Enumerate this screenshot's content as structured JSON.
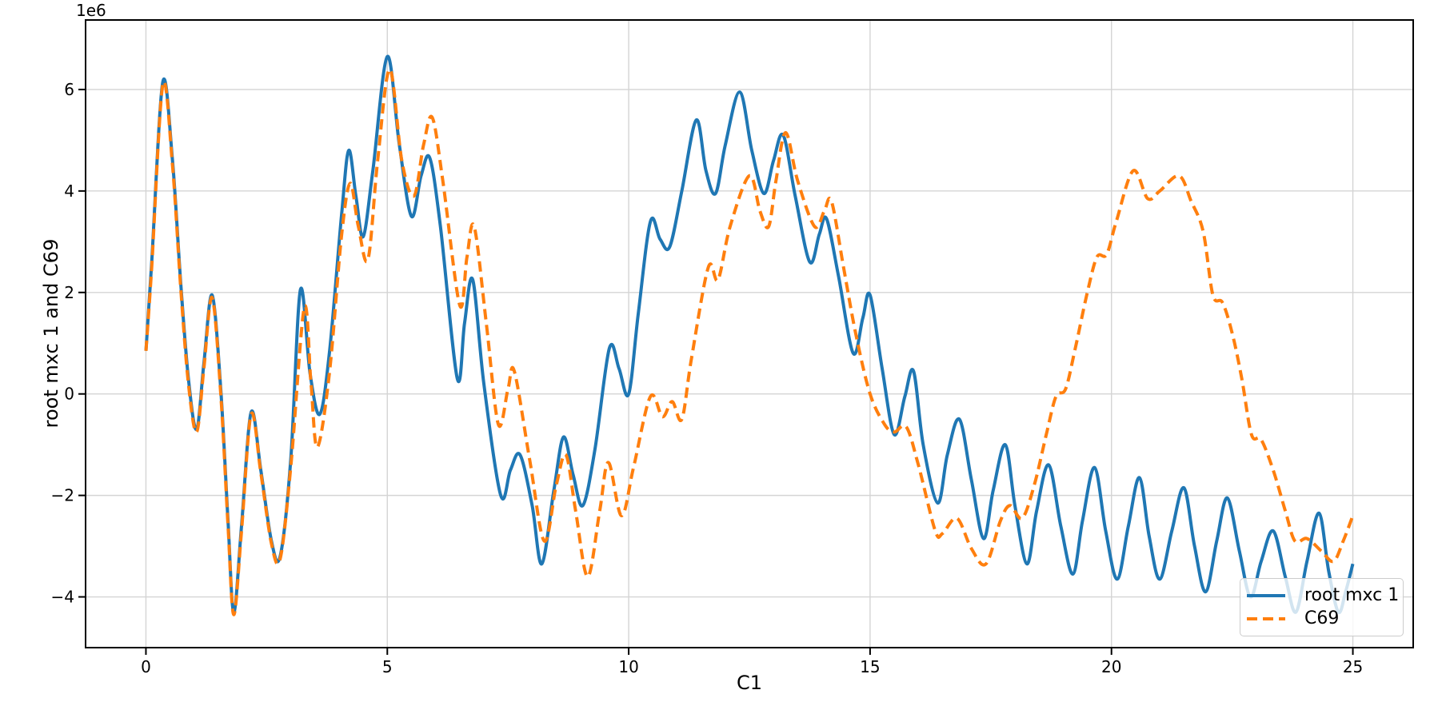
{
  "chart_data": {
    "type": "line",
    "title": "",
    "xlabel": "C1",
    "ylabel": "root mxc 1 and C69",
    "y_offset_label": "1e6",
    "y_unit_multiplier": 1000000,
    "xlim": [
      -1.25,
      26.25
    ],
    "ylim": [
      -5.0,
      7.37
    ],
    "grid": true,
    "grid_color": "#d4d4d4",
    "spine_color": "#000000",
    "legend_position": "lower right",
    "xticks": {
      "values": [
        0,
        5,
        10,
        15,
        20,
        25
      ],
      "labels": [
        "0",
        "5",
        "10",
        "15",
        "20",
        "25"
      ]
    },
    "yticks": {
      "values": [
        -4,
        -2,
        0,
        2,
        4,
        6
      ],
      "labels": [
        "−4",
        "−2",
        "0",
        "2",
        "4",
        "6"
      ]
    },
    "series": [
      {
        "name": "root mxc 1",
        "color": "#1f77b4",
        "line_style": "solid",
        "points": [
          [
            0.0,
            0.85
          ],
          [
            0.12,
            2.6
          ],
          [
            0.35,
            6.15
          ],
          [
            0.55,
            4.6
          ],
          [
            0.72,
            2.2
          ],
          [
            0.88,
            0.3
          ],
          [
            1.05,
            -0.7
          ],
          [
            1.2,
            0.6
          ],
          [
            1.37,
            1.95
          ],
          [
            1.55,
            0.1
          ],
          [
            1.7,
            -2.5
          ],
          [
            1.82,
            -4.3
          ],
          [
            1.98,
            -2.6
          ],
          [
            2.18,
            -0.36
          ],
          [
            2.38,
            -1.5
          ],
          [
            2.6,
            -2.9
          ],
          [
            2.78,
            -3.2
          ],
          [
            3.0,
            -1.3
          ],
          [
            3.2,
            2.05
          ],
          [
            3.4,
            0.4
          ],
          [
            3.6,
            -0.4
          ],
          [
            3.8,
            0.8
          ],
          [
            4.05,
            3.5
          ],
          [
            4.2,
            4.8
          ],
          [
            4.35,
            3.9
          ],
          [
            4.5,
            3.1
          ],
          [
            4.7,
            4.4
          ],
          [
            5.0,
            6.65
          ],
          [
            5.25,
            4.9
          ],
          [
            5.5,
            3.5
          ],
          [
            5.7,
            4.3
          ],
          [
            5.88,
            4.65
          ],
          [
            6.1,
            3.3
          ],
          [
            6.45,
            0.3
          ],
          [
            6.6,
            1.4
          ],
          [
            6.77,
            2.25
          ],
          [
            7.0,
            0.2
          ],
          [
            7.35,
            -2.0
          ],
          [
            7.55,
            -1.5
          ],
          [
            7.75,
            -1.2
          ],
          [
            8.0,
            -2.2
          ],
          [
            8.2,
            -3.35
          ],
          [
            8.45,
            -1.9
          ],
          [
            8.65,
            -0.85
          ],
          [
            8.85,
            -1.6
          ],
          [
            9.05,
            -2.2
          ],
          [
            9.3,
            -1.1
          ],
          [
            9.6,
            0.9
          ],
          [
            9.8,
            0.5
          ],
          [
            10.0,
            0.0
          ],
          [
            10.2,
            1.6
          ],
          [
            10.45,
            3.4
          ],
          [
            10.65,
            3.05
          ],
          [
            10.85,
            2.9
          ],
          [
            11.1,
            4.0
          ],
          [
            11.4,
            5.4
          ],
          [
            11.6,
            4.4
          ],
          [
            11.8,
            3.95
          ],
          [
            12.0,
            4.9
          ],
          [
            12.3,
            5.95
          ],
          [
            12.55,
            4.8
          ],
          [
            12.8,
            3.95
          ],
          [
            13.0,
            4.6
          ],
          [
            13.2,
            5.1
          ],
          [
            13.45,
            3.9
          ],
          [
            13.75,
            2.6
          ],
          [
            13.95,
            3.15
          ],
          [
            14.1,
            3.45
          ],
          [
            14.35,
            2.3
          ],
          [
            14.65,
            0.8
          ],
          [
            14.85,
            1.5
          ],
          [
            15.0,
            1.95
          ],
          [
            15.25,
            0.5
          ],
          [
            15.5,
            -0.8
          ],
          [
            15.72,
            -0.05
          ],
          [
            15.9,
            0.45
          ],
          [
            16.1,
            -1.0
          ],
          [
            16.4,
            -2.15
          ],
          [
            16.6,
            -1.2
          ],
          [
            16.85,
            -0.5
          ],
          [
            17.1,
            -1.7
          ],
          [
            17.35,
            -2.85
          ],
          [
            17.55,
            -1.9
          ],
          [
            17.8,
            -1.0
          ],
          [
            18.0,
            -2.2
          ],
          [
            18.25,
            -3.35
          ],
          [
            18.45,
            -2.3
          ],
          [
            18.7,
            -1.4
          ],
          [
            18.95,
            -2.6
          ],
          [
            19.2,
            -3.55
          ],
          [
            19.4,
            -2.5
          ],
          [
            19.65,
            -1.45
          ],
          [
            19.88,
            -2.7
          ],
          [
            20.12,
            -3.65
          ],
          [
            20.35,
            -2.6
          ],
          [
            20.58,
            -1.65
          ],
          [
            20.78,
            -2.8
          ],
          [
            21.0,
            -3.65
          ],
          [
            21.25,
            -2.7
          ],
          [
            21.5,
            -1.85
          ],
          [
            21.72,
            -3.0
          ],
          [
            21.95,
            -3.9
          ],
          [
            22.18,
            -2.9
          ],
          [
            22.4,
            -2.05
          ],
          [
            22.65,
            -3.1
          ],
          [
            22.88,
            -4.0
          ],
          [
            23.1,
            -3.3
          ],
          [
            23.35,
            -2.7
          ],
          [
            23.6,
            -3.6
          ],
          [
            23.82,
            -4.3
          ],
          [
            24.05,
            -3.3
          ],
          [
            24.3,
            -2.35
          ],
          [
            24.5,
            -3.5
          ],
          [
            24.7,
            -4.3
          ],
          [
            24.85,
            -3.9
          ],
          [
            25.0,
            -3.35
          ]
        ]
      },
      {
        "name": "C69",
        "color": "#ff7f0e",
        "line_style": "dashed",
        "points": [
          [
            0.0,
            0.85
          ],
          [
            0.12,
            2.5
          ],
          [
            0.35,
            6.1
          ],
          [
            0.55,
            4.5
          ],
          [
            0.72,
            2.1
          ],
          [
            0.88,
            0.2
          ],
          [
            1.05,
            -0.75
          ],
          [
            1.2,
            0.5
          ],
          [
            1.37,
            1.9
          ],
          [
            1.55,
            0.0
          ],
          [
            1.7,
            -2.6
          ],
          [
            1.82,
            -4.35
          ],
          [
            1.98,
            -2.7
          ],
          [
            2.18,
            -0.4
          ],
          [
            2.38,
            -1.55
          ],
          [
            2.6,
            -2.95
          ],
          [
            2.78,
            -3.25
          ],
          [
            3.0,
            -1.45
          ],
          [
            3.28,
            1.7
          ],
          [
            3.42,
            0.2
          ],
          [
            3.55,
            -1.05
          ],
          [
            3.8,
            0.4
          ],
          [
            4.05,
            3.1
          ],
          [
            4.23,
            4.15
          ],
          [
            4.4,
            3.3
          ],
          [
            4.6,
            2.65
          ],
          [
            4.8,
            4.6
          ],
          [
            5.05,
            6.4
          ],
          [
            5.3,
            4.6
          ],
          [
            5.55,
            3.9
          ],
          [
            5.75,
            4.9
          ],
          [
            5.93,
            5.45
          ],
          [
            6.15,
            4.2
          ],
          [
            6.5,
            1.75
          ],
          [
            6.65,
            2.7
          ],
          [
            6.8,
            3.3
          ],
          [
            7.05,
            1.4
          ],
          [
            7.3,
            -0.6
          ],
          [
            7.5,
            0.1
          ],
          [
            7.63,
            0.45
          ],
          [
            7.95,
            -1.3
          ],
          [
            8.25,
            -2.9
          ],
          [
            8.5,
            -1.8
          ],
          [
            8.7,
            -1.2
          ],
          [
            8.9,
            -2.3
          ],
          [
            9.15,
            -3.6
          ],
          [
            9.4,
            -2.3
          ],
          [
            9.58,
            -1.35
          ],
          [
            9.85,
            -2.4
          ],
          [
            10.1,
            -1.45
          ],
          [
            10.45,
            -0.05
          ],
          [
            10.7,
            -0.45
          ],
          [
            10.9,
            -0.15
          ],
          [
            11.1,
            -0.5
          ],
          [
            11.3,
            0.7
          ],
          [
            11.65,
            2.5
          ],
          [
            11.85,
            2.25
          ],
          [
            12.1,
            3.3
          ],
          [
            12.5,
            4.3
          ],
          [
            12.72,
            3.6
          ],
          [
            12.9,
            3.3
          ],
          [
            13.05,
            4.2
          ],
          [
            13.25,
            5.15
          ],
          [
            13.5,
            4.2
          ],
          [
            13.85,
            3.3
          ],
          [
            14.05,
            3.6
          ],
          [
            14.2,
            3.8
          ],
          [
            14.45,
            2.5
          ],
          [
            14.7,
            1.2
          ],
          [
            15.0,
            0.0
          ],
          [
            15.3,
            -0.6
          ],
          [
            15.5,
            -0.75
          ],
          [
            15.75,
            -0.65
          ],
          [
            16.0,
            -1.4
          ],
          [
            16.35,
            -2.7
          ],
          [
            16.5,
            -2.75
          ],
          [
            16.8,
            -2.45
          ],
          [
            17.1,
            -3.05
          ],
          [
            17.4,
            -3.35
          ],
          [
            17.7,
            -2.5
          ],
          [
            17.9,
            -2.2
          ],
          [
            18.15,
            -2.45
          ],
          [
            18.4,
            -1.8
          ],
          [
            18.65,
            -0.8
          ],
          [
            18.85,
            -0.05
          ],
          [
            19.05,
            0.1
          ],
          [
            19.25,
            0.9
          ],
          [
            19.5,
            2.0
          ],
          [
            19.7,
            2.7
          ],
          [
            19.9,
            2.75
          ],
          [
            20.1,
            3.4
          ],
          [
            20.45,
            4.4
          ],
          [
            20.75,
            3.85
          ],
          [
            21.0,
            4.0
          ],
          [
            21.4,
            4.3
          ],
          [
            21.65,
            3.8
          ],
          [
            21.9,
            3.2
          ],
          [
            22.1,
            1.95
          ],
          [
            22.3,
            1.8
          ],
          [
            22.5,
            1.2
          ],
          [
            22.7,
            0.3
          ],
          [
            22.9,
            -0.8
          ],
          [
            23.1,
            -0.9
          ],
          [
            23.35,
            -1.5
          ],
          [
            23.6,
            -2.3
          ],
          [
            23.8,
            -2.9
          ],
          [
            24.05,
            -2.85
          ],
          [
            24.35,
            -3.1
          ],
          [
            24.6,
            -3.3
          ],
          [
            24.8,
            -2.9
          ],
          [
            25.0,
            -2.4
          ]
        ]
      }
    ]
  },
  "legend": {
    "entries": [
      "root mxc 1",
      "C69"
    ]
  }
}
